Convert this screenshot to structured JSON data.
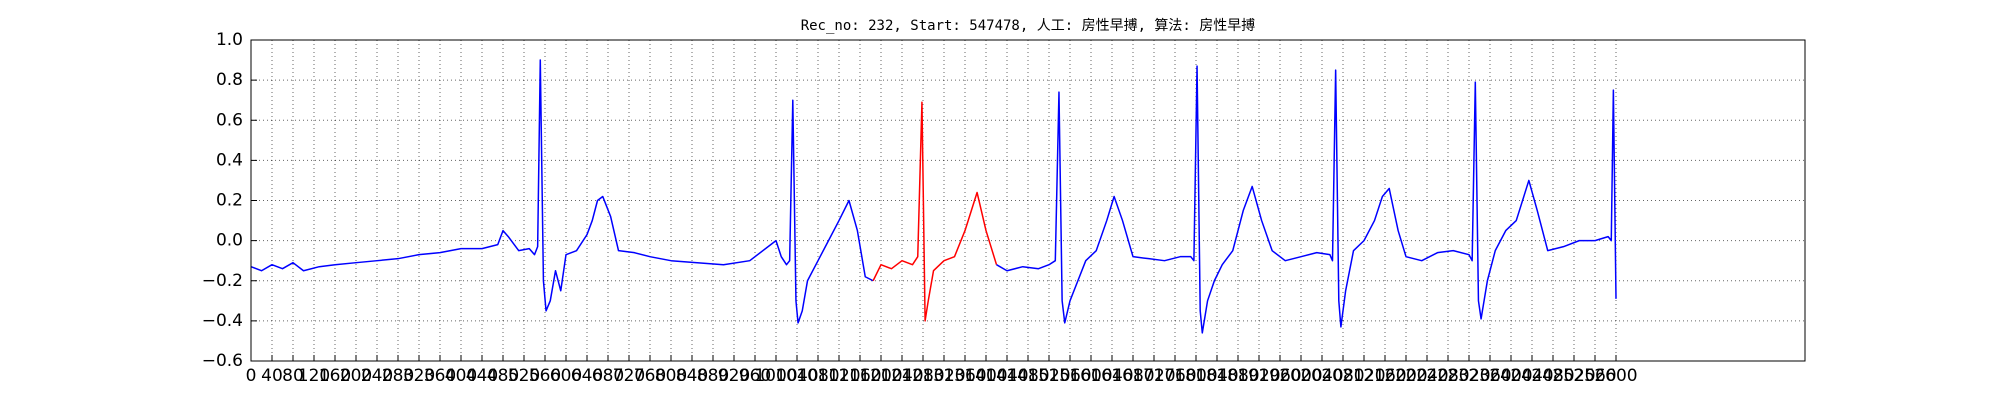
{
  "chart_data": {
    "type": "line",
    "title": "Rec_no: 232, Start: 547478, 人工: 房性早搏, 算法: 房性早搏",
    "xlim": [
      0,
      2960
    ],
    "ylim": [
      -0.6,
      1.0
    ],
    "grid": true,
    "xticks": [
      0,
      40,
      80,
      120,
      160,
      200,
      240,
      280,
      320,
      360,
      400,
      440,
      480,
      520,
      560,
      600,
      640,
      680,
      720,
      760,
      800,
      840,
      880,
      920,
      960,
      1000,
      1040,
      1080,
      1120,
      1160,
      1200,
      1240,
      1280,
      1320,
      1360,
      1400,
      1440,
      1480,
      1520,
      1560,
      1600,
      1640,
      1680,
      1720,
      1760,
      1800,
      1840,
      1880,
      1920,
      1960,
      2000,
      2040,
      2080,
      2120,
      2160,
      2200,
      2240,
      2280,
      2320,
      2360,
      2400,
      2440,
      2480,
      2520,
      2560,
      2600
    ],
    "yticks": [
      {
        "value": -0.6,
        "label": "−0.6"
      },
      {
        "value": -0.4,
        "label": "−0.4"
      },
      {
        "value": -0.2,
        "label": "−0.2"
      },
      {
        "value": 0,
        "label": "0.0"
      },
      0.2,
      0.4,
      0.6,
      0.8,
      {
        "value": 1.0,
        "label": "1.0"
      }
    ],
    "series": [
      {
        "color": "#0000ff",
        "x": [
          0,
          20,
          40,
          60,
          80,
          100,
          130,
          160,
          200,
          240,
          280,
          320,
          360,
          400,
          440,
          470,
          480,
          490,
          510,
          530,
          540,
          546,
          551,
          557,
          562,
          570,
          580,
          590,
          600,
          620,
          640,
          650,
          660,
          670,
          685,
          700,
          730,
          760,
          800,
          850,
          900,
          950,
          1000,
          1010,
          1020,
          1026,
          1032,
          1038,
          1042,
          1050,
          1060,
          1080,
          1100,
          1120,
          1139,
          1155,
          1170,
          1185
        ],
        "values": [
          -0.13,
          -0.15,
          -0.12,
          -0.14,
          -0.11,
          -0.15,
          -0.13,
          -0.12,
          -0.11,
          -0.1,
          -0.09,
          -0.07,
          -0.06,
          -0.04,
          -0.04,
          -0.02,
          0.05,
          0.02,
          -0.05,
          -0.04,
          -0.07,
          -0.03,
          0.9,
          -0.2,
          -0.35,
          -0.3,
          -0.15,
          -0.25,
          -0.07,
          -0.05,
          0.03,
          0.1,
          0.2,
          0.22,
          0.12,
          -0.05,
          -0.06,
          -0.08,
          -0.1,
          -0.11,
          -0.12,
          -0.1,
          0.0,
          -0.08,
          -0.12,
          -0.1,
          0.7,
          -0.3,
          -0.41,
          -0.35,
          -0.2,
          -0.1,
          0.0,
          0.1,
          0.2,
          0.05,
          -0.18,
          -0.2
        ]
      },
      {
        "color": "#ff0000",
        "x": [
          1185,
          1200,
          1220,
          1240,
          1260,
          1270,
          1278,
          1284,
          1290,
          1300,
          1320,
          1340,
          1360,
          1383,
          1400,
          1420
        ],
        "values": [
          -0.2,
          -0.12,
          -0.14,
          -0.1,
          -0.12,
          -0.08,
          0.69,
          -0.4,
          -0.3,
          -0.15,
          -0.1,
          -0.08,
          0.05,
          0.24,
          0.05,
          -0.12
        ]
      },
      {
        "color": "#0000ff",
        "x": [
          1420,
          1440,
          1470,
          1500,
          1520,
          1532,
          1539,
          1545,
          1550,
          1560,
          1575,
          1590,
          1610,
          1630,
          1644,
          1660,
          1680,
          1710,
          1740,
          1770,
          1790,
          1796,
          1802,
          1808,
          1812,
          1822,
          1835,
          1850,
          1870,
          1890,
          1907,
          1925,
          1945,
          1970,
          2000,
          2030,
          2055,
          2060,
          2066,
          2072,
          2076,
          2085,
          2100,
          2120,
          2140,
          2155,
          2168,
          2185,
          2200,
          2230,
          2260,
          2290,
          2320,
          2326,
          2332,
          2338,
          2343,
          2355,
          2370,
          2390,
          2410,
          2434,
          2450,
          2470,
          2500,
          2530,
          2560,
          2585,
          2591,
          2595,
          2600
        ],
        "values": [
          -0.12,
          -0.15,
          -0.13,
          -0.14,
          -0.12,
          -0.1,
          0.74,
          -0.3,
          -0.41,
          -0.3,
          -0.2,
          -0.1,
          -0.05,
          0.1,
          0.22,
          0.1,
          -0.08,
          -0.09,
          -0.1,
          -0.08,
          -0.08,
          -0.1,
          0.87,
          -0.35,
          -0.46,
          -0.3,
          -0.2,
          -0.12,
          -0.05,
          0.15,
          0.27,
          0.1,
          -0.05,
          -0.1,
          -0.08,
          -0.06,
          -0.07,
          -0.1,
          0.85,
          -0.3,
          -0.43,
          -0.25,
          -0.05,
          0.0,
          0.1,
          0.22,
          0.26,
          0.05,
          -0.08,
          -0.1,
          -0.06,
          -0.05,
          -0.07,
          -0.1,
          0.79,
          -0.3,
          -0.39,
          -0.2,
          -0.05,
          0.05,
          0.1,
          0.3,
          0.15,
          -0.05,
          -0.03,
          0.0,
          0.0,
          0.02,
          0.0,
          0.75,
          -0.29
        ]
      }
    ]
  }
}
